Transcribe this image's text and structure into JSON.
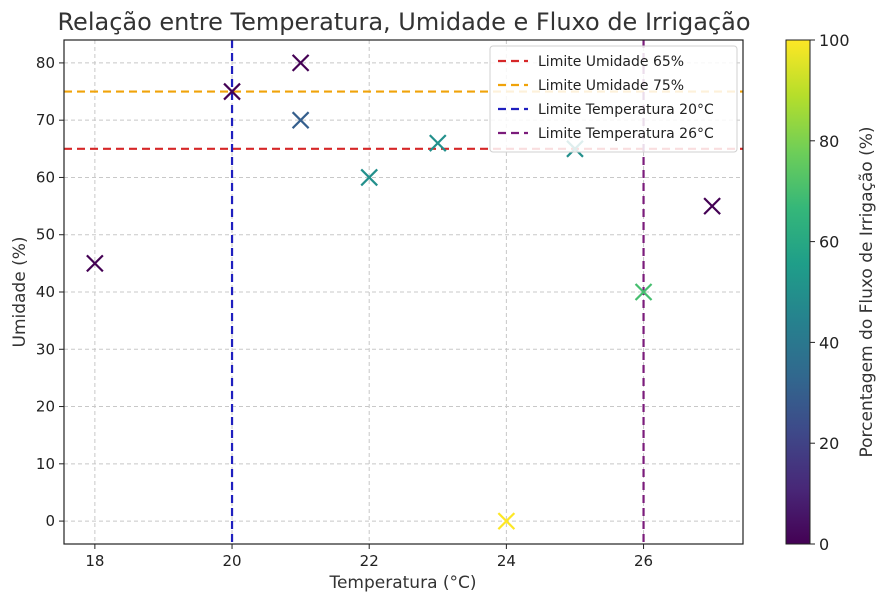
{
  "chart_data": {
    "type": "scatter",
    "title": "Relação entre Temperatura, Umidade e Fluxo de Irrigação",
    "xlabel": "Temperatura (°C)",
    "ylabel": "Umidade (%)",
    "xlim": [
      17.55,
      27.45
    ],
    "ylim": [
      -4,
      84
    ],
    "xticks": [
      18,
      20,
      22,
      24,
      26
    ],
    "yticks": [
      0,
      10,
      20,
      30,
      40,
      50,
      60,
      70,
      80
    ],
    "grid": true,
    "marker": "x",
    "colormap": "viridis",
    "colorbar": {
      "label": "Porcentagem do Fluxo de Irrigação (%)",
      "range": [
        0,
        100
      ],
      "ticks": [
        0,
        20,
        40,
        60,
        80,
        100
      ]
    },
    "points": [
      {
        "x": 18,
        "y": 45,
        "c": 0
      },
      {
        "x": 20,
        "y": 75,
        "c": 0
      },
      {
        "x": 21,
        "y": 80,
        "c": 0
      },
      {
        "x": 21,
        "y": 70,
        "c": 30
      },
      {
        "x": 22,
        "y": 60,
        "c": 50
      },
      {
        "x": 23,
        "y": 66,
        "c": 50
      },
      {
        "x": 24,
        "y": 0,
        "c": 100
      },
      {
        "x": 25,
        "y": 65,
        "c": 50
      },
      {
        "x": 26,
        "y": 40,
        "c": 70
      },
      {
        "x": 27,
        "y": 55,
        "c": 0
      }
    ],
    "reference_lines": [
      {
        "orientation": "horizontal",
        "value": 65,
        "label": "Limite Umidade 65%",
        "color": "#d62728"
      },
      {
        "orientation": "horizontal",
        "value": 75,
        "label": "Limite Umidade 75%",
        "color": "#f0a30a"
      },
      {
        "orientation": "vertical",
        "value": 20,
        "label": "Limite Temperatura 20°C",
        "color": "#1f1fbf"
      },
      {
        "orientation": "vertical",
        "value": 26,
        "label": "Limite Temperatura 26°C",
        "color": "#7b1c7b"
      }
    ],
    "legend_position": "top-right"
  }
}
